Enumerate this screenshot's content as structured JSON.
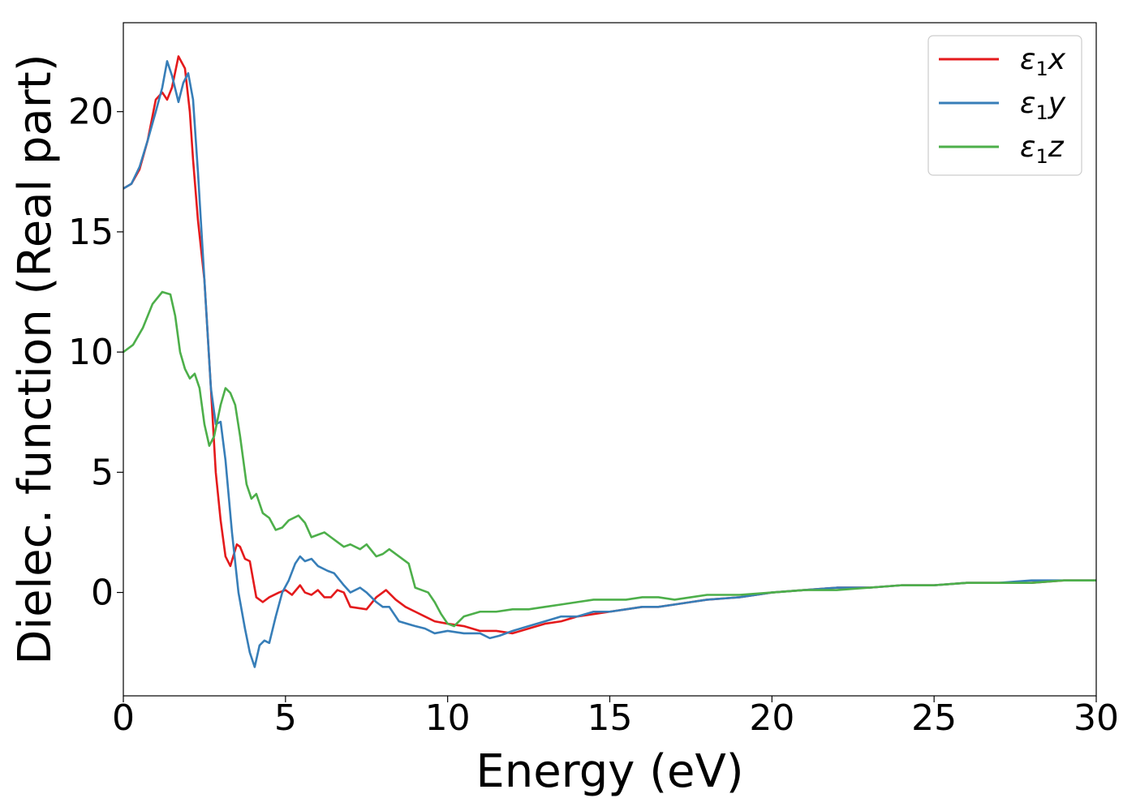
{
  "chart_data": {
    "type": "line",
    "title": "",
    "xlabel": "Energy (eV)",
    "ylabel": "Dielec. function (Real part)",
    "xlim": [
      0,
      30
    ],
    "ylim": [
      -4.3,
      23.7
    ],
    "xticks": [
      0,
      5,
      10,
      15,
      20,
      25,
      30
    ],
    "yticks": [
      0,
      5,
      10,
      15,
      20
    ],
    "grid": false,
    "legend_position": "top-right",
    "series": [
      {
        "name": "ε₁x",
        "legend": {
          "base": "ε",
          "sub": "1",
          "tail": "x"
        },
        "color": "#e41a1c",
        "points": [
          [
            0,
            16.8
          ],
          [
            0.25,
            17.0
          ],
          [
            0.5,
            17.6
          ],
          [
            0.75,
            18.8
          ],
          [
            1.0,
            20.5
          ],
          [
            1.2,
            20.8
          ],
          [
            1.35,
            20.5
          ],
          [
            1.5,
            21.0
          ],
          [
            1.7,
            22.3
          ],
          [
            1.9,
            21.8
          ],
          [
            2.05,
            20.0
          ],
          [
            2.15,
            18.0
          ],
          [
            2.3,
            15.5
          ],
          [
            2.5,
            13.0
          ],
          [
            2.7,
            8.5
          ],
          [
            2.85,
            5.0
          ],
          [
            3.0,
            3.0
          ],
          [
            3.15,
            1.5
          ],
          [
            3.3,
            1.1
          ],
          [
            3.5,
            2.0
          ],
          [
            3.6,
            1.9
          ],
          [
            3.75,
            1.4
          ],
          [
            3.9,
            1.3
          ],
          [
            4.1,
            -0.2
          ],
          [
            4.3,
            -0.4
          ],
          [
            4.5,
            -0.2
          ],
          [
            4.8,
            0.0
          ],
          [
            5.0,
            0.1
          ],
          [
            5.2,
            -0.1
          ],
          [
            5.45,
            0.3
          ],
          [
            5.6,
            0.0
          ],
          [
            5.8,
            -0.1
          ],
          [
            6.0,
            0.1
          ],
          [
            6.2,
            -0.2
          ],
          [
            6.4,
            -0.2
          ],
          [
            6.6,
            0.1
          ],
          [
            6.8,
            0.0
          ],
          [
            7.0,
            -0.6
          ],
          [
            7.5,
            -0.7
          ],
          [
            7.8,
            -0.2
          ],
          [
            8.1,
            0.1
          ],
          [
            8.4,
            -0.3
          ],
          [
            8.7,
            -0.6
          ],
          [
            9.0,
            -0.8
          ],
          [
            9.3,
            -1.0
          ],
          [
            9.6,
            -1.2
          ],
          [
            10.0,
            -1.3
          ],
          [
            10.5,
            -1.4
          ],
          [
            11.0,
            -1.6
          ],
          [
            11.5,
            -1.6
          ],
          [
            12.0,
            -1.7
          ],
          [
            12.5,
            -1.5
          ],
          [
            13.0,
            -1.3
          ],
          [
            13.5,
            -1.2
          ],
          [
            14.0,
            -1.0
          ],
          [
            14.5,
            -0.9
          ],
          [
            15.0,
            -0.8
          ],
          [
            15.5,
            -0.7
          ],
          [
            16.0,
            -0.6
          ],
          [
            16.5,
            -0.6
          ],
          [
            17.0,
            -0.5
          ],
          [
            17.5,
            -0.4
          ],
          [
            18.0,
            -0.3
          ],
          [
            19.0,
            -0.2
          ],
          [
            20.0,
            0.0
          ],
          [
            21.0,
            0.1
          ],
          [
            22.0,
            0.2
          ],
          [
            23.0,
            0.2
          ],
          [
            24.0,
            0.3
          ],
          [
            25.0,
            0.3
          ],
          [
            26.0,
            0.4
          ],
          [
            27.0,
            0.4
          ],
          [
            28.0,
            0.4
          ],
          [
            29.0,
            0.5
          ],
          [
            30.0,
            0.5
          ]
        ]
      },
      {
        "name": "ε₁y",
        "legend": {
          "base": "ε",
          "sub": "1",
          "tail": "y"
        },
        "color": "#377eb8",
        "points": [
          [
            0,
            16.8
          ],
          [
            0.25,
            17.0
          ],
          [
            0.5,
            17.7
          ],
          [
            0.75,
            18.8
          ],
          [
            1.0,
            20.0
          ],
          [
            1.2,
            21.0
          ],
          [
            1.35,
            22.1
          ],
          [
            1.5,
            21.5
          ],
          [
            1.7,
            20.4
          ],
          [
            1.85,
            21.2
          ],
          [
            2.0,
            21.6
          ],
          [
            2.15,
            20.5
          ],
          [
            2.3,
            17.5
          ],
          [
            2.5,
            13.0
          ],
          [
            2.7,
            8.5
          ],
          [
            2.85,
            7.0
          ],
          [
            3.0,
            7.1
          ],
          [
            3.15,
            5.5
          ],
          [
            3.35,
            2.5
          ],
          [
            3.55,
            0.0
          ],
          [
            3.75,
            -1.5
          ],
          [
            3.9,
            -2.5
          ],
          [
            4.05,
            -3.1
          ],
          [
            4.2,
            -2.2
          ],
          [
            4.35,
            -2.0
          ],
          [
            4.5,
            -2.1
          ],
          [
            4.7,
            -1.0
          ],
          [
            4.9,
            0.0
          ],
          [
            5.1,
            0.5
          ],
          [
            5.3,
            1.2
          ],
          [
            5.45,
            1.5
          ],
          [
            5.6,
            1.3
          ],
          [
            5.8,
            1.4
          ],
          [
            6.0,
            1.1
          ],
          [
            6.3,
            0.9
          ],
          [
            6.5,
            0.8
          ],
          [
            6.8,
            0.3
          ],
          [
            7.0,
            0.0
          ],
          [
            7.3,
            0.2
          ],
          [
            7.5,
            0.0
          ],
          [
            7.8,
            -0.4
          ],
          [
            8.0,
            -0.6
          ],
          [
            8.2,
            -0.6
          ],
          [
            8.5,
            -1.2
          ],
          [
            9.0,
            -1.4
          ],
          [
            9.3,
            -1.5
          ],
          [
            9.6,
            -1.7
          ],
          [
            10.0,
            -1.6
          ],
          [
            10.5,
            -1.7
          ],
          [
            11.0,
            -1.7
          ],
          [
            11.3,
            -1.9
          ],
          [
            11.6,
            -1.8
          ],
          [
            12.0,
            -1.6
          ],
          [
            12.5,
            -1.4
          ],
          [
            13.0,
            -1.2
          ],
          [
            13.5,
            -1.0
          ],
          [
            14.0,
            -1.0
          ],
          [
            14.5,
            -0.8
          ],
          [
            15.0,
            -0.8
          ],
          [
            15.5,
            -0.7
          ],
          [
            16.0,
            -0.6
          ],
          [
            16.5,
            -0.6
          ],
          [
            17.0,
            -0.5
          ],
          [
            17.5,
            -0.4
          ],
          [
            18.0,
            -0.3
          ],
          [
            19.0,
            -0.2
          ],
          [
            20.0,
            0.0
          ],
          [
            21.0,
            0.1
          ],
          [
            22.0,
            0.2
          ],
          [
            23.0,
            0.2
          ],
          [
            24.0,
            0.3
          ],
          [
            25.0,
            0.3
          ],
          [
            26.0,
            0.4
          ],
          [
            27.0,
            0.4
          ],
          [
            28.0,
            0.5
          ],
          [
            29.0,
            0.5
          ],
          [
            30.0,
            0.5
          ]
        ]
      },
      {
        "name": "ε₁z",
        "legend": {
          "base": "ε",
          "sub": "1",
          "tail": "z"
        },
        "color": "#4daf4a",
        "points": [
          [
            0,
            10.0
          ],
          [
            0.3,
            10.3
          ],
          [
            0.6,
            11.0
          ],
          [
            0.9,
            12.0
          ],
          [
            1.2,
            12.5
          ],
          [
            1.45,
            12.4
          ],
          [
            1.6,
            11.5
          ],
          [
            1.75,
            10.0
          ],
          [
            1.9,
            9.3
          ],
          [
            2.05,
            8.9
          ],
          [
            2.2,
            9.1
          ],
          [
            2.35,
            8.5
          ],
          [
            2.5,
            7.0
          ],
          [
            2.65,
            6.1
          ],
          [
            2.8,
            6.5
          ],
          [
            3.0,
            7.8
          ],
          [
            3.15,
            8.5
          ],
          [
            3.3,
            8.3
          ],
          [
            3.45,
            7.8
          ],
          [
            3.6,
            6.5
          ],
          [
            3.8,
            4.5
          ],
          [
            3.95,
            3.9
          ],
          [
            4.1,
            4.1
          ],
          [
            4.3,
            3.3
          ],
          [
            4.5,
            3.1
          ],
          [
            4.7,
            2.6
          ],
          [
            4.9,
            2.7
          ],
          [
            5.1,
            3.0
          ],
          [
            5.4,
            3.2
          ],
          [
            5.6,
            2.9
          ],
          [
            5.8,
            2.3
          ],
          [
            6.0,
            2.4
          ],
          [
            6.2,
            2.5
          ],
          [
            6.4,
            2.3
          ],
          [
            6.6,
            2.1
          ],
          [
            6.8,
            1.9
          ],
          [
            7.0,
            2.0
          ],
          [
            7.3,
            1.8
          ],
          [
            7.5,
            2.0
          ],
          [
            7.8,
            1.5
          ],
          [
            8.0,
            1.6
          ],
          [
            8.2,
            1.8
          ],
          [
            8.5,
            1.5
          ],
          [
            8.8,
            1.2
          ],
          [
            9.0,
            0.2
          ],
          [
            9.2,
            0.1
          ],
          [
            9.4,
            0.0
          ],
          [
            9.6,
            -0.4
          ],
          [
            9.8,
            -0.9
          ],
          [
            10.0,
            -1.3
          ],
          [
            10.2,
            -1.4
          ],
          [
            10.5,
            -1.0
          ],
          [
            11.0,
            -0.8
          ],
          [
            11.5,
            -0.8
          ],
          [
            12.0,
            -0.7
          ],
          [
            12.5,
            -0.7
          ],
          [
            13.0,
            -0.6
          ],
          [
            13.5,
            -0.5
          ],
          [
            14.0,
            -0.4
          ],
          [
            14.5,
            -0.3
          ],
          [
            15.0,
            -0.3
          ],
          [
            15.5,
            -0.3
          ],
          [
            16.0,
            -0.2
          ],
          [
            16.5,
            -0.2
          ],
          [
            17.0,
            -0.3
          ],
          [
            17.5,
            -0.2
          ],
          [
            18.0,
            -0.1
          ],
          [
            19.0,
            -0.1
          ],
          [
            20.0,
            0.0
          ],
          [
            21.0,
            0.1
          ],
          [
            22.0,
            0.1
          ],
          [
            23.0,
            0.2
          ],
          [
            24.0,
            0.3
          ],
          [
            25.0,
            0.3
          ],
          [
            26.0,
            0.4
          ],
          [
            27.0,
            0.4
          ],
          [
            28.0,
            0.4
          ],
          [
            29.0,
            0.5
          ],
          [
            30.0,
            0.5
          ]
        ]
      }
    ]
  }
}
